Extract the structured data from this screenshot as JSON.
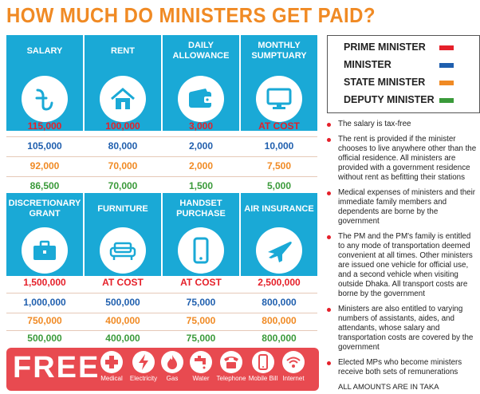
{
  "title": "HOW MUCH DO MINISTERS GET PAID?",
  "colors": {
    "prime": "#e5202a",
    "minister": "#1f5fae",
    "state": "#f08a24",
    "deputy": "#3a9a3a",
    "header": "#1aa9d6",
    "free": "#e84a50"
  },
  "top": {
    "headers": [
      "SALARY",
      "RENT",
      "DAILY ALLOWANCE",
      "MONTHLY SUMPTUARY"
    ],
    "icons": [
      "taka-icon",
      "house-icon",
      "wallet-icon",
      "monitor-icon"
    ],
    "rows": [
      [
        "115,000",
        "100,000",
        "3,000",
        "AT COST"
      ],
      [
        "105,000",
        "80,000",
        "2,000",
        "10,000"
      ],
      [
        "92,000",
        "70,000",
        "2,000",
        "7,500"
      ],
      [
        "86,500",
        "70,000",
        "1,500",
        "5,000"
      ]
    ]
  },
  "bottom": {
    "headers": [
      "DISCRETIONARY GRANT",
      "FURNITURE",
      "HANDSET PURCHASE",
      "AIR INSURANCE"
    ],
    "icons": [
      "briefcase-icon",
      "sofa-icon",
      "phone-icon",
      "airplane-icon"
    ],
    "rows": [
      [
        "1,500,000",
        "AT COST",
        "AT COST",
        "2,500,000"
      ],
      [
        "1,000,000",
        "500,000",
        "75,000",
        "800,000"
      ],
      [
        "750,000",
        "400,000",
        "75,000",
        "800,000"
      ],
      [
        "500,000",
        "400,000",
        "75,000",
        "800,000"
      ]
    ]
  },
  "legend": [
    "PRIME MINISTER",
    "MINISTER",
    "STATE MINISTER",
    "DEPUTY MINISTER"
  ],
  "notes": [
    "The salary is tax-free",
    "The rent is provided if the minister chooses to live anywhere other than the official residence. All ministers are provided with a government residence without rent as befitting their stations",
    "Medical expenses of ministers and their immediate family members and dependents are borne by the government",
    "The PM and the PM's family is entitled to any mode of transportation deemed convenient at all times. Other ministers are issued one vehicle for official use, and a second vehicle when visiting outside Dhaka. All transport costs are borne by the government",
    "Ministers are also entitled to varying numbers of assistants, aides, and attendants, whose salary and transportation costs are covered by the government",
    "Elected MPs who become ministers receive both sets of remunerations"
  ],
  "amounts_note": "ALL AMOUNTS ARE IN TAKA",
  "free": {
    "label": "FREE",
    "items": [
      "Medical",
      "Electricity",
      "Gas",
      "Water",
      "Telephone",
      "Mobile Bill",
      "Internet"
    ]
  }
}
